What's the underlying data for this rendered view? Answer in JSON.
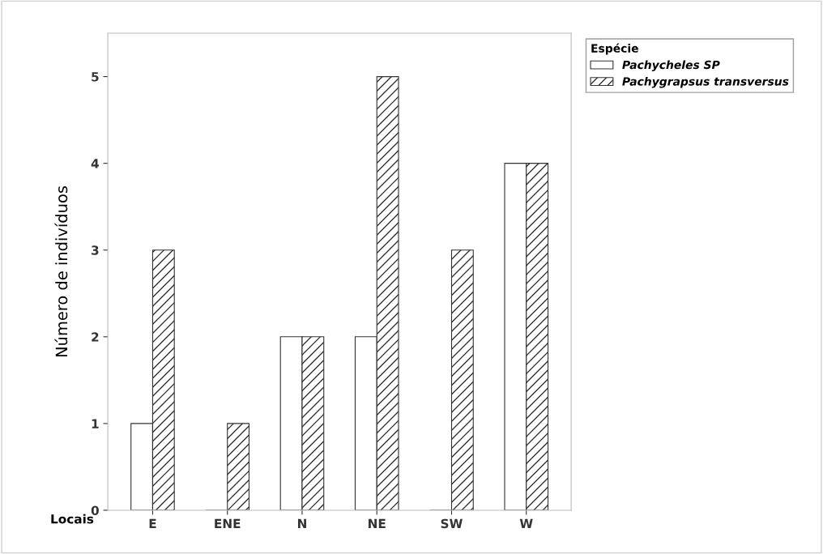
{
  "chart_data": {
    "type": "bar",
    "xlabel": "Locais",
    "ylabel": "Número de indivíduos",
    "legend_title": "Espécie",
    "categories": [
      "E",
      "ENE",
      "N",
      "NE",
      "SW",
      "W"
    ],
    "series": [
      {
        "name": "Pachycheles SP",
        "color": "#333333",
        "values": [
          1,
          0,
          2,
          2,
          0,
          4
        ]
      },
      {
        "name": "Pachygrapsus transversus",
        "color": "#333333",
        "values": [
          3,
          1,
          2,
          5,
          3,
          4
        ]
      }
    ],
    "ylim": [
      0,
      5.5
    ],
    "yticks": [
      0,
      1,
      2,
      3,
      4,
      5
    ],
    "grid": false,
    "legend": "top right"
  }
}
